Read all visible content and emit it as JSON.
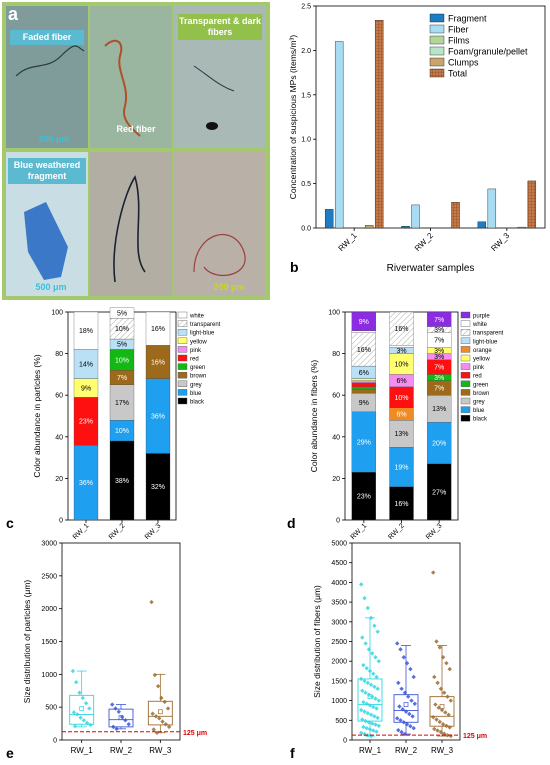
{
  "panel_a": {
    "letter": "a",
    "labels": {
      "faded": "Faded fiber",
      "red": "Red fiber",
      "transparent": "Transparent & dark fibers",
      "blue": "Blue weathered fragment",
      "scale_200_top": "200 μm",
      "scale_500": "500 μm",
      "scale_200_bottom": "200 μm"
    }
  },
  "colors": {
    "Fragment": "#1f7cc2",
    "Fiber": "#a8dcf2",
    "Films": "#b2d69a",
    "Foam": "#b8e4c8",
    "Clumps": "#c8a56a",
    "Total": "#b56a3c",
    "purple": "#8b2be2",
    "white": "#ffffff",
    "transparent": "#ffffff",
    "light-blue": "#b9e0f5",
    "orange": "#f08a24",
    "yellow": "#ffff70",
    "pink": "#f58cf0",
    "red": "#ff1010",
    "green": "#14b814",
    "brown": "#9c6a1a",
    "grey": "#c8c8c8",
    "blue": "#1e9ff0",
    "black": "#000000",
    "RW_1_pts": "#33d6e0",
    "RW_2_pts": "#3a55d8",
    "RW_3_pts": "#9c6a30",
    "threshold": "#e00000"
  },
  "chart_data": [
    {
      "id": "b",
      "letter": "b",
      "type": "bar",
      "categories": [
        "RW_1",
        "RW_2",
        "RW_3"
      ],
      "xlabel": "Riverwater samples",
      "ylabel": "Concentration of suspicious MPs (items/m³)",
      "ylim": [
        0,
        2.5
      ],
      "yticks": [
        "0.0",
        "0.5",
        "1.0",
        "1.5",
        "2.0",
        "2.5"
      ],
      "legend": "top-right",
      "series": [
        {
          "name": "Fragment",
          "values": [
            0.21,
            0.02,
            0.07
          ]
        },
        {
          "name": "Fiber",
          "values": [
            2.1,
            0.26,
            0.44
          ]
        },
        {
          "name": "Films",
          "values": [
            0.0,
            0.0,
            0.0
          ]
        },
        {
          "name": "Foam/granule/pellet",
          "values": [
            0.0,
            0.0,
            0.0
          ]
        },
        {
          "name": "Clumps",
          "values": [
            0.03,
            0.0,
            0.01
          ]
        },
        {
          "name": "Total",
          "values": [
            2.34,
            0.29,
            0.53
          ]
        }
      ]
    },
    {
      "id": "c",
      "letter": "c",
      "type": "bar",
      "stacked": true,
      "categories": [
        "RW_1",
        "RW_2",
        "RW_3"
      ],
      "ylabel": "Color abundance in particles (%)",
      "ylim": [
        0,
        100
      ],
      "yticks": [
        "0",
        "20",
        "40",
        "60",
        "80",
        "100"
      ],
      "legend": "right",
      "legend_items": [
        "white",
        "transparent",
        "light-blue",
        "yellow",
        "pink",
        "red",
        "green",
        "brown",
        "grey",
        "blue",
        "black"
      ],
      "stacks": [
        [
          {
            "c": "blue",
            "v": 36,
            "t": "36%"
          },
          {
            "c": "red",
            "v": 23,
            "t": "23%"
          },
          {
            "c": "yellow",
            "v": 9,
            "t": "9%"
          },
          {
            "c": "light-blue",
            "v": 14,
            "t": "14%"
          },
          {
            "c": "white",
            "v": 18,
            "t": "18%"
          }
        ],
        [
          {
            "c": "black",
            "v": 38,
            "t": "38%"
          },
          {
            "c": "blue",
            "v": 10,
            "t": "10%"
          },
          {
            "c": "grey",
            "v": 17,
            "t": "17%"
          },
          {
            "c": "brown",
            "v": 7,
            "t": "7%"
          },
          {
            "c": "green",
            "v": 10,
            "t": "10%"
          },
          {
            "c": "light-blue",
            "v": 5,
            "t": "5%"
          },
          {
            "c": "transparent",
            "v": 10,
            "t": "10%"
          },
          {
            "c": "white",
            "v": 5,
            "t": "5%"
          }
        ],
        [
          {
            "c": "black",
            "v": 32,
            "t": "32%"
          },
          {
            "c": "blue",
            "v": 36,
            "t": "36%"
          },
          {
            "c": "brown",
            "v": 16,
            "t": "16%"
          },
          {
            "c": "white",
            "v": 16,
            "t": "16%"
          }
        ]
      ]
    },
    {
      "id": "d",
      "letter": "d",
      "type": "bar",
      "stacked": true,
      "categories": [
        "RW_1",
        "RW_2",
        "RW_3"
      ],
      "ylabel": "Color abundance in fibers (%)",
      "ylim": [
        0,
        100
      ],
      "yticks": [
        "0",
        "20",
        "40",
        "60",
        "80",
        "100"
      ],
      "legend": "right",
      "legend_items": [
        "purple",
        "white",
        "transparent",
        "light-blue",
        "orange",
        "yellow",
        "pink",
        "red",
        "green",
        "brown",
        "grey",
        "blue",
        "black"
      ],
      "stacks": [
        [
          {
            "c": "black",
            "v": 23,
            "t": "23%"
          },
          {
            "c": "blue",
            "v": 29,
            "t": "29%"
          },
          {
            "c": "grey",
            "v": 9,
            "t": "9%"
          },
          {
            "c": "brown",
            "v": 2,
            "t": ""
          },
          {
            "c": "green",
            "v": 1,
            "t": ""
          },
          {
            "c": "red",
            "v": 2,
            "t": ""
          },
          {
            "c": "pink",
            "v": 1,
            "t": ""
          },
          {
            "c": "yellow",
            "v": 1,
            "t": ""
          },
          {
            "c": "light-blue",
            "v": 6,
            "t": "6%"
          },
          {
            "c": "transparent",
            "v": 16,
            "t": "16%"
          },
          {
            "c": "white",
            "v": 1,
            "t": ""
          },
          {
            "c": "purple",
            "v": 9,
            "t": "9%"
          }
        ],
        [
          {
            "c": "black",
            "v": 16,
            "t": "16%"
          },
          {
            "c": "blue",
            "v": 19,
            "t": "19%"
          },
          {
            "c": "grey",
            "v": 13,
            "t": "13%"
          },
          {
            "c": "orange",
            "v": 6,
            "t": "6%"
          },
          {
            "c": "red",
            "v": 10,
            "t": "10%"
          },
          {
            "c": "pink",
            "v": 6,
            "t": "6%"
          },
          {
            "c": "yellow",
            "v": 10,
            "t": "10%"
          },
          {
            "c": "light-blue",
            "v": 3,
            "t": "3%"
          },
          {
            "c": "white",
            "v": 1,
            "t": ""
          },
          {
            "c": "transparent",
            "v": 16,
            "t": "16%"
          }
        ],
        [
          {
            "c": "black",
            "v": 27,
            "t": "27%"
          },
          {
            "c": "blue",
            "v": 20,
            "t": "20%"
          },
          {
            "c": "grey",
            "v": 13,
            "t": "13%"
          },
          {
            "c": "brown",
            "v": 7,
            "t": "7%"
          },
          {
            "c": "green",
            "v": 3,
            "t": "3%"
          },
          {
            "c": "red",
            "v": 7,
            "t": "7%"
          },
          {
            "c": "pink",
            "v": 3,
            "t": "3%"
          },
          {
            "c": "yellow",
            "v": 3,
            "t": "3%"
          },
          {
            "c": "white",
            "v": 7,
            "t": "7%"
          },
          {
            "c": "transparent",
            "v": 3,
            "t": "3%"
          },
          {
            "c": "purple",
            "v": 7,
            "t": "7%"
          }
        ]
      ]
    },
    {
      "id": "e",
      "letter": "e",
      "type": "scatter",
      "subtype": "box",
      "categories": [
        "RW_1",
        "RW_2",
        "RW_3"
      ],
      "ylabel": "Size distribution of particles (μm)",
      "ylim": [
        0,
        3000
      ],
      "yticks": [
        "0",
        "500",
        "1000",
        "1500",
        "2000",
        "2500",
        "3000"
      ],
      "threshold": {
        "value": 125,
        "label": "125 μm"
      },
      "boxes": [
        {
          "min": 200,
          "q1": 240,
          "med": 390,
          "q3": 680,
          "max": 1050,
          "mean": 480
        },
        {
          "min": 170,
          "q1": 200,
          "med": 310,
          "q3": 470,
          "max": 540,
          "mean": 340
        },
        {
          "min": 110,
          "q1": 230,
          "med": 360,
          "q3": 590,
          "max": 1000,
          "mean": 430
        }
      ],
      "points": [
        [
          1050,
          880,
          720,
          640,
          560,
          480,
          420,
          390,
          340,
          300,
          260,
          230,
          210
        ],
        [
          540,
          480,
          430,
          350,
          300,
          240,
          200,
          170
        ],
        [
          2100,
          990,
          820,
          640,
          580,
          480,
          400,
          360,
          330,
          280,
          240,
          200,
          160,
          110
        ]
      ]
    },
    {
      "id": "f",
      "letter": "f",
      "type": "scatter",
      "subtype": "box",
      "categories": [
        "RW_1",
        "RW_2",
        "RW_3"
      ],
      "ylabel": "Size distribution of fibers (μm)",
      "ylim": [
        0,
        5000
      ],
      "yticks": [
        "0",
        "500",
        "1000",
        "1500",
        "2000",
        "2500",
        "3000",
        "3500",
        "4000",
        "4500",
        "5000"
      ],
      "threshold": {
        "value": 125,
        "label": "125 μm"
      },
      "boxes": [
        {
          "min": 100,
          "q1": 480,
          "med": 900,
          "q3": 1550,
          "max": 3100,
          "mean": 1100
        },
        {
          "min": 150,
          "q1": 450,
          "med": 750,
          "q3": 1150,
          "max": 2400,
          "mean": 900
        },
        {
          "min": 100,
          "q1": 350,
          "med": 600,
          "q3": 1100,
          "max": 2400,
          "mean": 850
        }
      ],
      "points": [
        [
          3950,
          3600,
          3350,
          3100,
          2900,
          2750,
          2600,
          2450,
          2300,
          2200,
          2100,
          2000,
          1900,
          1820,
          1750,
          1680,
          1600,
          1550,
          1500,
          1450,
          1400,
          1350,
          1300,
          1250,
          1200,
          1150,
          1100,
          1050,
          1000,
          960,
          920,
          880,
          840,
          800,
          760,
          720,
          680,
          640,
          600,
          560,
          520,
          480,
          450,
          420,
          390,
          360,
          330,
          300,
          270,
          240,
          210,
          180,
          150,
          120,
          100
        ],
        [
          2450,
          2300,
          2100,
          1950,
          1800,
          1600,
          1450,
          1300,
          1200,
          1100,
          1000,
          920,
          850,
          780,
          720,
          660,
          600,
          550,
          500,
          450,
          400,
          350,
          300,
          250,
          200,
          150
        ],
        [
          4250,
          2500,
          2350,
          2100,
          1950,
          1800,
          1600,
          1450,
          1300,
          1200,
          1100,
          1000,
          900,
          820,
          760,
          700,
          640,
          580,
          520,
          460,
          400,
          360,
          320,
          280,
          240,
          200,
          160,
          120,
          100
        ]
      ]
    }
  ]
}
